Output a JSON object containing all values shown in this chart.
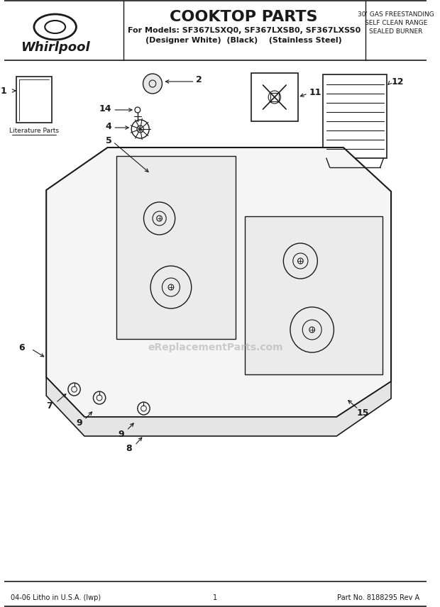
{
  "title": "COOKTOP PARTS",
  "subtitle_line1": "For Models: SF367LSXQ0, SF367LXSB0, SF367LXSS0",
  "subtitle_line2": "(Designer White)  (Black)    (Stainless Steel)",
  "top_right_line1": "30' GAS FREESTANDING",
  "top_right_line2": "SELF CLEAN RANGE",
  "top_right_line3": "SEALED BURNER",
  "brand": "Whirlpool",
  "footer_left": "04-06 Litho in U.S.A. (lwp)",
  "footer_center": "1",
  "footer_right": "Part No. 8188295 Rev A",
  "watermark": "eReplacementParts.com",
  "bg_color": "#ffffff",
  "line_color": "#1a1a1a",
  "literature_parts_label": "Literature Parts"
}
